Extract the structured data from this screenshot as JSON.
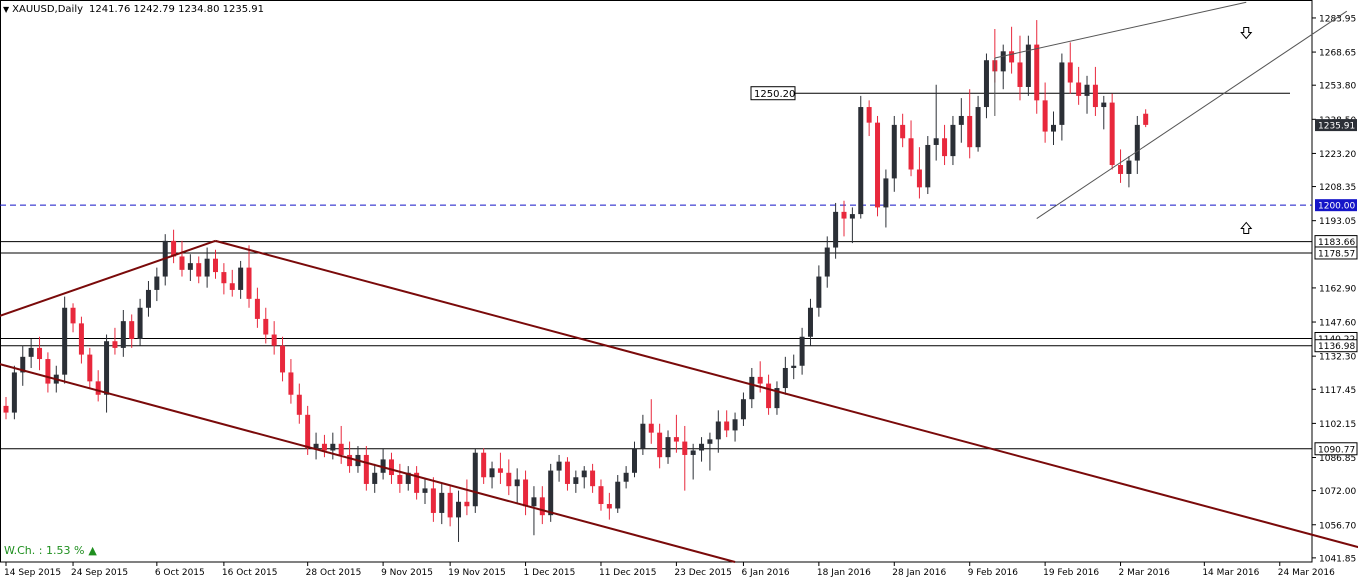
{
  "header": {
    "symbol": "XAUUSD,Daily",
    "ohlc": "1241.76 1242.79 1234.80 1235.91"
  },
  "indicator": {
    "label": "W.Ch. : 1.53 %"
  },
  "chart_data": {
    "type": "candlestick",
    "ylim": [
      1040,
      1292
    ],
    "y_ticks": [
      {
        "value": 1283.95,
        "text": "1283.95"
      },
      {
        "value": 1268.65,
        "text": "1268.65"
      },
      {
        "value": 1253.8,
        "text": "1253.80"
      },
      {
        "value": 1238.5,
        "text": "1238.50"
      },
      {
        "value": 1223.2,
        "text": "1223.20"
      },
      {
        "value": 1208.35,
        "text": "1208.35"
      },
      {
        "value": 1193.05,
        "text": "1193.05"
      },
      {
        "value": 1162.9,
        "text": "1162.90"
      },
      {
        "value": 1147.6,
        "text": "1147.60"
      },
      {
        "value": 1132.3,
        "text": "1132.30"
      },
      {
        "value": 1117.45,
        "text": "1117.45"
      },
      {
        "value": 1102.15,
        "text": "1102.15"
      },
      {
        "value": 1086.85,
        "text": "1086.85"
      },
      {
        "value": 1072.0,
        "text": "1072.00"
      },
      {
        "value": 1056.7,
        "text": "1056.70"
      },
      {
        "value": 1041.85,
        "text": "1041.85"
      }
    ],
    "x_ticks": [
      {
        "bar": 0,
        "text": "14 Sep 2015"
      },
      {
        "bar": 8,
        "text": "24 Sep 2015"
      },
      {
        "bar": 18,
        "text": "6 Oct 2015"
      },
      {
        "bar": 26,
        "text": "16 Oct 2015"
      },
      {
        "bar": 36,
        "text": "28 Oct 2015"
      },
      {
        "bar": 45,
        "text": "9 Nov 2015"
      },
      {
        "bar": 53,
        "text": "19 Nov 2015"
      },
      {
        "bar": 62,
        "text": "1 Dec 2015"
      },
      {
        "bar": 71,
        "text": "11 Dec 2015"
      },
      {
        "bar": 80,
        "text": "23 Dec 2015"
      },
      {
        "bar": 88,
        "text": "6 Jan 2016"
      },
      {
        "bar": 97,
        "text": "18 Jan 2016"
      },
      {
        "bar": 106,
        "text": "28 Jan 2016"
      },
      {
        "bar": 115,
        "text": "9 Feb 2016"
      },
      {
        "bar": 124,
        "text": "19 Feb 2016"
      },
      {
        "bar": 133,
        "text": "2 Mar 2016"
      },
      {
        "bar": 143,
        "text": "14 Mar 2016"
      },
      {
        "bar": 152,
        "text": "24 Mar 2016"
      }
    ],
    "current_price": {
      "value": 1235.91,
      "text": "1235.91"
    },
    "levels": [
      {
        "value": 1250.2,
        "text": "1250.20",
        "style": "solid-short",
        "label_side": "left"
      },
      {
        "value": 1200.0,
        "text": "1200.00",
        "style": "dashed-blue",
        "label_side": "right"
      },
      {
        "value": 1183.66,
        "text": "1183.66",
        "style": "solid",
        "label_side": "right"
      },
      {
        "value": 1178.57,
        "text": "1178.57",
        "style": "solid",
        "label_side": "right"
      },
      {
        "value": 1140.22,
        "text": "1140.22",
        "style": "solid",
        "label_side": "right"
      },
      {
        "value": 1136.98,
        "text": "1136.98",
        "style": "solid",
        "label_side": "right"
      },
      {
        "value": 1090.77,
        "text": "1090.77",
        "style": "solid",
        "label_side": "right"
      }
    ],
    "trendlines": [
      {
        "color": "#7a0a0a",
        "width": 2,
        "from": [
          -1,
          1150
        ],
        "to": [
          25,
          1184
        ]
      },
      {
        "color": "#7a0a0a",
        "width": 2,
        "from": [
          25,
          1184
        ],
        "to": [
          168,
          1040
        ]
      },
      {
        "color": "#7a0a0a",
        "width": 2,
        "from": [
          -1,
          1129
        ],
        "to": [
          87,
          1040
        ]
      },
      {
        "color": "#555555",
        "width": 1,
        "from": [
          118,
          1266
        ],
        "to": [
          148,
          1291
        ]
      },
      {
        "color": "#555555",
        "width": 1,
        "from": [
          118,
          1266
        ],
        "to": [
          118,
          1240
        ]
      },
      {
        "color": "#555555",
        "width": 1,
        "from": [
          123,
          1194
        ],
        "to": [
          160,
          1287
        ]
      }
    ],
    "arrows": [
      {
        "bar": 148,
        "value": 1277,
        "direction": "down"
      },
      {
        "bar": 148,
        "value": 1190,
        "direction": "up"
      }
    ],
    "colors": {
      "bull": "#2b2f36",
      "bear": "#e8283c",
      "dashed": "#1515c8",
      "current_price_bg": "#2b2f36"
    },
    "candles": [
      [
        1110,
        1114,
        1104,
        1107
      ],
      [
        1107,
        1128,
        1104,
        1125
      ],
      [
        1125,
        1137,
        1119,
        1132
      ],
      [
        1132,
        1140,
        1127,
        1136
      ],
      [
        1136,
        1141,
        1126,
        1131
      ],
      [
        1131,
        1134,
        1116,
        1120
      ],
      [
        1120,
        1128,
        1116,
        1124
      ],
      [
        1124,
        1159,
        1120,
        1154
      ],
      [
        1154,
        1156,
        1143,
        1147
      ],
      [
        1147,
        1150,
        1129,
        1133
      ],
      [
        1133,
        1136,
        1118,
        1121
      ],
      [
        1121,
        1126,
        1112,
        1115
      ],
      [
        1115,
        1142,
        1107,
        1139
      ],
      [
        1139,
        1145,
        1133,
        1136
      ],
      [
        1136,
        1153,
        1132,
        1148
      ],
      [
        1148,
        1151,
        1136,
        1140
      ],
      [
        1140,
        1158,
        1137,
        1154
      ],
      [
        1154,
        1166,
        1150,
        1162
      ],
      [
        1162,
        1172,
        1157,
        1168
      ],
      [
        1168,
        1187,
        1164,
        1184
      ],
      [
        1184,
        1189,
        1174,
        1177
      ],
      [
        1177,
        1184,
        1168,
        1171
      ],
      [
        1171,
        1178,
        1166,
        1174
      ],
      [
        1174,
        1177,
        1165,
        1168
      ],
      [
        1168,
        1181,
        1163,
        1176
      ],
      [
        1176,
        1180,
        1167,
        1170
      ],
      [
        1170,
        1174,
        1160,
        1165
      ],
      [
        1165,
        1171,
        1159,
        1162
      ],
      [
        1162,
        1175,
        1158,
        1172
      ],
      [
        1172,
        1182,
        1154,
        1158
      ],
      [
        1158,
        1163,
        1145,
        1149
      ],
      [
        1149,
        1154,
        1138,
        1142
      ],
      [
        1142,
        1148,
        1133,
        1137
      ],
      [
        1137,
        1141,
        1121,
        1125
      ],
      [
        1125,
        1131,
        1111,
        1115
      ],
      [
        1115,
        1120,
        1102,
        1106
      ],
      [
        1106,
        1110,
        1088,
        1091
      ],
      [
        1091,
        1098,
        1086,
        1093
      ],
      [
        1093,
        1097,
        1087,
        1090
      ],
      [
        1090,
        1098,
        1086,
        1093
      ],
      [
        1093,
        1101,
        1084,
        1088
      ],
      [
        1088,
        1094,
        1080,
        1083
      ],
      [
        1083,
        1092,
        1080,
        1088
      ],
      [
        1088,
        1092,
        1072,
        1075
      ],
      [
        1075,
        1084,
        1071,
        1080
      ],
      [
        1080,
        1091,
        1077,
        1086
      ],
      [
        1086,
        1089,
        1075,
        1079
      ],
      [
        1079,
        1084,
        1071,
        1075
      ],
      [
        1075,
        1083,
        1072,
        1080
      ],
      [
        1080,
        1083,
        1068,
        1071
      ],
      [
        1071,
        1077,
        1066,
        1073
      ],
      [
        1073,
        1078,
        1058,
        1062
      ],
      [
        1062,
        1075,
        1057,
        1071
      ],
      [
        1071,
        1074,
        1056,
        1060
      ],
      [
        1060,
        1072,
        1049,
        1067
      ],
      [
        1067,
        1077,
        1061,
        1065
      ],
      [
        1065,
        1091,
        1062,
        1089
      ],
      [
        1089,
        1091,
        1075,
        1078
      ],
      [
        1078,
        1085,
        1073,
        1082
      ],
      [
        1082,
        1089,
        1075,
        1080
      ],
      [
        1080,
        1086,
        1070,
        1074
      ],
      [
        1074,
        1082,
        1066,
        1077
      ],
      [
        1077,
        1081,
        1061,
        1065
      ],
      [
        1065,
        1074,
        1052,
        1069
      ],
      [
        1069,
        1074,
        1057,
        1061
      ],
      [
        1061,
        1084,
        1058,
        1081
      ],
      [
        1081,
        1088,
        1076,
        1085
      ],
      [
        1085,
        1087,
        1072,
        1075
      ],
      [
        1075,
        1081,
        1071,
        1078
      ],
      [
        1078,
        1083,
        1073,
        1081
      ],
      [
        1081,
        1084,
        1071,
        1074
      ],
      [
        1074,
        1077,
        1063,
        1066
      ],
      [
        1066,
        1071,
        1059,
        1064
      ],
      [
        1064,
        1079,
        1062,
        1076
      ],
      [
        1076,
        1083,
        1073,
        1080
      ],
      [
        1080,
        1094,
        1078,
        1091
      ],
      [
        1091,
        1106,
        1088,
        1102
      ],
      [
        1102,
        1113,
        1093,
        1098
      ],
      [
        1098,
        1102,
        1082,
        1087
      ],
      [
        1087,
        1099,
        1084,
        1096
      ],
      [
        1096,
        1106,
        1089,
        1094
      ],
      [
        1094,
        1101,
        1072,
        1088
      ],
      [
        1088,
        1093,
        1077,
        1090
      ],
      [
        1090,
        1096,
        1085,
        1093
      ],
      [
        1093,
        1098,
        1081,
        1095
      ],
      [
        1095,
        1108,
        1089,
        1103
      ],
      [
        1103,
        1108,
        1096,
        1099
      ],
      [
        1099,
        1107,
        1094,
        1104
      ],
      [
        1104,
        1116,
        1101,
        1113
      ],
      [
        1113,
        1127,
        1109,
        1123
      ],
      [
        1123,
        1130,
        1116,
        1120
      ],
      [
        1120,
        1124,
        1106,
        1109
      ],
      [
        1109,
        1121,
        1106,
        1118
      ],
      [
        1118,
        1132,
        1115,
        1127
      ],
      [
        1127,
        1133,
        1122,
        1128
      ],
      [
        1128,
        1145,
        1124,
        1141
      ],
      [
        1141,
        1158,
        1137,
        1154
      ],
      [
        1154,
        1173,
        1150,
        1168
      ],
      [
        1168,
        1186,
        1163,
        1181
      ],
      [
        1181,
        1201,
        1176,
        1197
      ],
      [
        1197,
        1202,
        1186,
        1194
      ],
      [
        1194,
        1199,
        1183,
        1196
      ],
      [
        1196,
        1249,
        1194,
        1244
      ],
      [
        1244,
        1247,
        1231,
        1237
      ],
      [
        1237,
        1240,
        1195,
        1199
      ],
      [
        1199,
        1216,
        1190,
        1212
      ],
      [
        1212,
        1240,
        1206,
        1236
      ],
      [
        1236,
        1241,
        1226,
        1230
      ],
      [
        1230,
        1238,
        1213,
        1216
      ],
      [
        1216,
        1226,
        1203,
        1208
      ],
      [
        1208,
        1231,
        1205,
        1227
      ],
      [
        1227,
        1254,
        1220,
        1230
      ],
      [
        1230,
        1236,
        1218,
        1222
      ],
      [
        1222,
        1240,
        1218,
        1236
      ],
      [
        1236,
        1248,
        1228,
        1240
      ],
      [
        1240,
        1252,
        1221,
        1226
      ],
      [
        1226,
        1249,
        1224,
        1244
      ],
      [
        1244,
        1268,
        1239,
        1265
      ],
      [
        1265,
        1279,
        1255,
        1260
      ],
      [
        1260,
        1272,
        1252,
        1269
      ],
      [
        1269,
        1280,
        1259,
        1264
      ],
      [
        1264,
        1276,
        1247,
        1253
      ],
      [
        1253,
        1276,
        1249,
        1272
      ],
      [
        1272,
        1283,
        1241,
        1247
      ],
      [
        1247,
        1255,
        1228,
        1233
      ],
      [
        1233,
        1242,
        1227,
        1236
      ],
      [
        1236,
        1268,
        1229,
        1264
      ],
      [
        1264,
        1273,
        1250,
        1255
      ],
      [
        1255,
        1262,
        1245,
        1249
      ],
      [
        1249,
        1258,
        1241,
        1254
      ],
      [
        1254,
        1262,
        1240,
        1244
      ],
      [
        1244,
        1249,
        1234,
        1246
      ],
      [
        1246,
        1250,
        1216,
        1218
      ],
      [
        1218,
        1225,
        1210,
        1214
      ],
      [
        1214,
        1222,
        1208,
        1220
      ],
      [
        1220,
        1240,
        1214,
        1236
      ],
      [
        1241,
        1243,
        1235,
        1236
      ]
    ]
  }
}
